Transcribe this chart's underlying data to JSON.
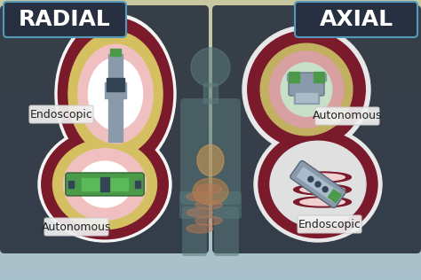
{
  "bg_top_color": "#a8c0cc",
  "bg_bottom_color": "#c8c8a0",
  "left_panel_color": "#2a3340",
  "right_panel_color": "#2a3340",
  "title_left": "RADIAL",
  "title_right": "AXIAL",
  "title_bg": "#263040",
  "title_border": "#5599bb",
  "title_fontsize": 18,
  "label_endoscopic": "Endoscopic",
  "label_autonomous": "Autonomous",
  "label_fontsize": 9,
  "label_bg": "#f0f0f0",
  "tissue_outer": "#7a1a2a",
  "tissue_inner": "#e8a0a0",
  "tissue_yellow": "#d4c060",
  "device_green": "#4a9a4a",
  "device_gray": "#8a9aaa",
  "device_dark": "#334455",
  "circle_bg": "#f5f5f5",
  "circle_border": "#cccccc",
  "body_color": "#5a7a7a"
}
